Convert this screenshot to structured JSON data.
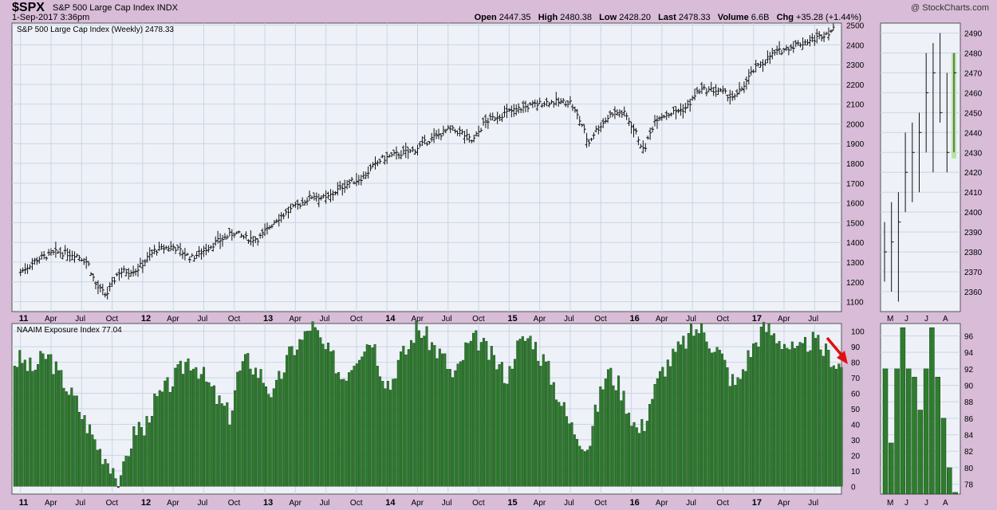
{
  "header": {
    "ticker": "$SPX",
    "name": "S&P 500 Large Cap Index",
    "exchange": "INDX",
    "date": "1-Sep-2017 3:36pm",
    "watermark": "@ StockCharts.com",
    "quote": {
      "open_label": "Open",
      "open": "2447.35",
      "high_label": "High",
      "high": "2480.38",
      "low_label": "Low",
      "low": "2428.20",
      "last_label": "Last",
      "last": "2478.33",
      "volume_label": "Volume",
      "volume": "6.6B",
      "chg_label": "Chg",
      "chg": "+35.28 (+1.44%)"
    }
  },
  "colors": {
    "bg": "#d8bcd8",
    "up_bar": "#2e7d2e",
    "down_bar": "#b02020",
    "arrow": "#e01010",
    "highlight": "#b8e6a0"
  },
  "chart_data": [
    {
      "type": "line",
      "title": "S&P 500 Large Cap Index (Weekly) 2478.33",
      "style": "ohlc-bars",
      "x_ticks": [
        "11",
        "Apr",
        "Jul",
        "Oct",
        "12",
        "Apr",
        "Jul",
        "Oct",
        "13",
        "Apr",
        "Jul",
        "Oct",
        "14",
        "Apr",
        "Jul",
        "Oct",
        "15",
        "Apr",
        "Jul",
        "Oct",
        "16",
        "Apr",
        "Jul",
        "Oct",
        "17",
        "Apr",
        "Jul"
      ],
      "y_ticks": [
        1100,
        1200,
        1300,
        1400,
        1500,
        1600,
        1700,
        1800,
        1900,
        2000,
        2100,
        2200,
        2300,
        2400,
        2500
      ],
      "ylim": [
        1050,
        2510
      ],
      "x": [
        2011.0,
        2011.15,
        2011.3,
        2011.45,
        2011.55,
        2011.62,
        2011.7,
        2011.8,
        2011.95,
        2012.1,
        2012.25,
        2012.4,
        2012.45,
        2012.6,
        2012.75,
        2012.85,
        2012.95,
        2013.1,
        2013.3,
        2013.4,
        2013.5,
        2013.65,
        2013.8,
        2013.95,
        2014.1,
        2014.2,
        2014.35,
        2014.5,
        2014.6,
        2014.7,
        2014.8,
        2014.95,
        2015.1,
        2015.3,
        2015.5,
        2015.6,
        2015.65,
        2015.7,
        2015.85,
        2015.95,
        2016.05,
        2016.1,
        2016.2,
        2016.35,
        2016.45,
        2016.55,
        2016.7,
        2016.85,
        2017.0,
        2017.15,
        2017.3,
        2017.5,
        2017.66
      ],
      "close": [
        1250,
        1320,
        1350,
        1340,
        1300,
        1180,
        1130,
        1250,
        1260,
        1360,
        1380,
        1320,
        1340,
        1400,
        1450,
        1420,
        1420,
        1520,
        1600,
        1640,
        1620,
        1690,
        1730,
        1820,
        1850,
        1860,
        1920,
        1970,
        1960,
        1910,
        2010,
        2050,
        2080,
        2110,
        2110,
        1990,
        1900,
        1960,
        2060,
        2050,
        1940,
        1860,
        2030,
        2060,
        2080,
        2170,
        2170,
        2130,
        2270,
        2350,
        2390,
        2430,
        2478
      ],
      "prev_high": 2490,
      "prev_low": 2360
    },
    {
      "type": "bar",
      "title": "NAAIM Exposure Index 77.04",
      "y_ticks": [
        0,
        10,
        20,
        30,
        40,
        50,
        60,
        70,
        80,
        90,
        100
      ],
      "ylim": [
        -5,
        105
      ],
      "x_ticks": [
        "11",
        "Apr",
        "Jul",
        "Oct",
        "12",
        "Apr",
        "Jul",
        "Oct",
        "13",
        "Apr",
        "Jul",
        "Oct",
        "14",
        "Apr",
        "Jul",
        "Oct",
        "15",
        "Apr",
        "Jul",
        "Oct",
        "16",
        "Apr",
        "Jul",
        "Oct",
        "17",
        "Apr",
        "Jul"
      ],
      "values": [
        80,
        82,
        78,
        75,
        80,
        84,
        82,
        72,
        68,
        60,
        55,
        45,
        38,
        30,
        22,
        18,
        12,
        -4,
        18,
        30,
        40,
        35,
        50,
        55,
        60,
        65,
        70,
        75,
        82,
        80,
        75,
        68,
        62,
        55,
        50,
        45,
        70,
        78,
        82,
        75,
        72,
        65,
        58,
        70,
        80,
        88,
        92,
        96,
        105,
        98,
        90,
        85,
        80,
        70,
        75,
        82,
        88,
        92,
        96,
        80,
        70,
        65,
        80,
        85,
        90,
        102,
        100,
        95,
        90,
        85,
        80,
        70,
        75,
        88,
        92,
        95,
        90,
        85,
        80,
        75,
        70,
        88,
        92,
        96,
        95,
        85,
        80,
        70,
        60,
        50,
        40,
        35,
        30,
        25,
        45,
        60,
        75,
        70,
        65,
        55,
        45,
        35,
        40,
        55,
        65,
        75,
        80,
        85,
        90,
        95,
        100,
        102,
        98,
        92,
        88,
        80,
        70,
        65,
        75,
        85,
        92,
        100,
        102,
        98,
        95,
        92,
        88,
        85,
        90,
        94,
        92,
        88,
        85,
        80,
        77
      ],
      "prev_y_ticks": [
        78,
        80,
        82,
        84,
        86,
        88,
        90,
        92,
        94,
        96
      ],
      "prev_values": [
        92,
        83,
        92,
        97,
        92,
        91,
        87,
        92,
        97,
        91,
        86,
        80,
        77
      ],
      "prev_months": [
        "M",
        "J",
        "J",
        "A"
      ]
    }
  ],
  "main_title": "S&P 500 Large Cap Index (Weekly) 2478.33",
  "lower_title": "NAAIM Exposure Index 77.04"
}
